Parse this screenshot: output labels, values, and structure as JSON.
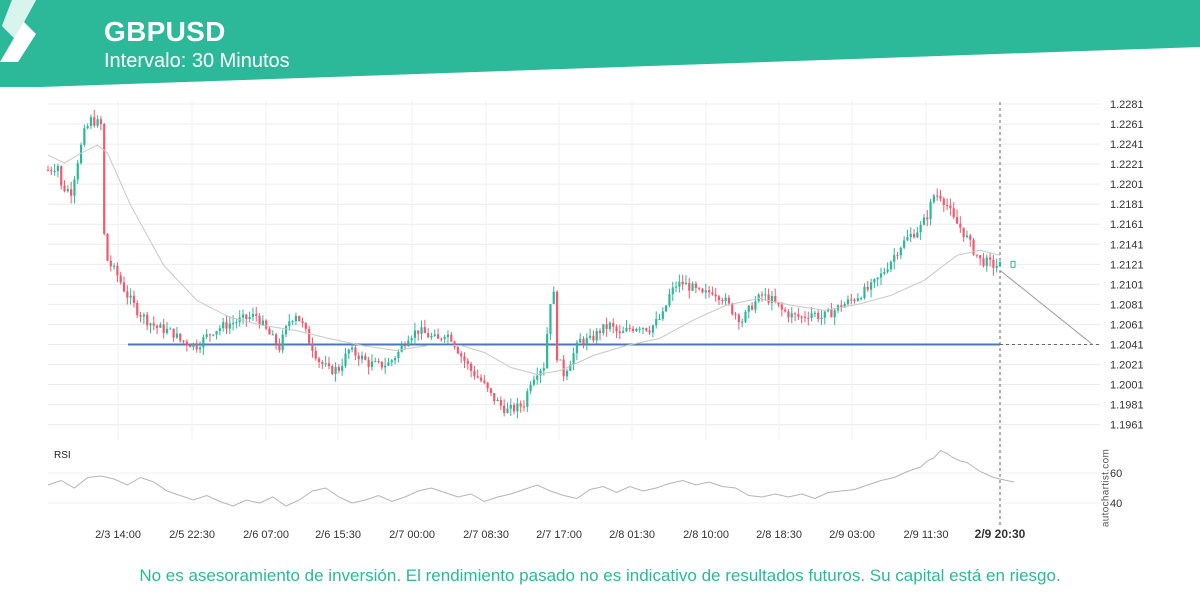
{
  "header": {
    "symbol": "GBPUSD",
    "interval": "Intervalo: 30 Minutos",
    "accent_color": "#2bb99a"
  },
  "footer": {
    "disclaimer": "No es asesoramiento de inversión. El rendimiento pasado no es indicativo de resultados futuros. Su capital está en riesgo."
  },
  "watermark": "autochartist.com",
  "chart_data": [
    {
      "type": "candlestick",
      "title": "GBPUSD",
      "subtitle": "Intervalo: 30 Minutos",
      "y_ticks": [
        "1.2281",
        "1.2261",
        "1.2241",
        "1.2221",
        "1.2201",
        "1.2181",
        "1.2161",
        "1.2141",
        "1.2121",
        "1.2101",
        "1.2081",
        "1.2061",
        "1.2041",
        "1.2021",
        "1.2001",
        "1.1981",
        "1.1961"
      ],
      "ylim": [
        1.195,
        1.2285
      ],
      "x_ticks": [
        "2/3 14:00",
        "2/5 22:30",
        "2/6 07:00",
        "2/6 15:30",
        "2/7 00:00",
        "2/7 08:30",
        "2/7 17:00",
        "2/8 01:30",
        "2/8 10:00",
        "2/8 18:30",
        "2/9 03:00",
        "2/9 11:30",
        "2/9 20:30"
      ],
      "highlighted_x_tick": "2/9 20:30",
      "support_level": 1.2041,
      "support_color": "#4a78b8",
      "bull_color": "#2bb99a",
      "bear_color": "#f05a6e",
      "price_path": [
        [
          0,
          1.2215
        ],
        [
          3,
          1.222
        ],
        [
          4,
          1.2198
        ],
        [
          7,
          1.2194
        ],
        [
          9,
          1.2225
        ],
        [
          11,
          1.2252
        ],
        [
          13,
          1.2265
        ],
        [
          15,
          1.2262
        ],
        [
          16,
          1.226
        ],
        [
          17,
          1.215
        ],
        [
          18,
          1.2125
        ],
        [
          21,
          1.211
        ],
        [
          24,
          1.209
        ],
        [
          27,
          1.2075
        ],
        [
          30,
          1.2065
        ],
        [
          33,
          1.2058
        ],
        [
          36,
          1.2055
        ],
        [
          38,
          1.2052
        ],
        [
          40,
          1.2045
        ],
        [
          45,
          1.204
        ],
        [
          50,
          1.2055
        ],
        [
          55,
          1.2062
        ],
        [
          60,
          1.2067
        ],
        [
          63,
          1.207
        ],
        [
          66,
          1.2055
        ],
        [
          70,
          1.2038
        ],
        [
          73,
          1.2065
        ],
        [
          75,
          1.2072
        ],
        [
          77,
          1.206
        ],
        [
          79,
          1.2045
        ],
        [
          82,
          1.2025
        ],
        [
          85,
          1.2015
        ],
        [
          88,
          1.2017
        ],
        [
          91,
          1.2035
        ],
        [
          94,
          1.203
        ],
        [
          97,
          1.2022
        ],
        [
          100,
          1.202
        ],
        [
          103,
          1.2022
        ],
        [
          106,
          1.2033
        ],
        [
          109,
          1.205
        ],
        [
          112,
          1.2055
        ],
        [
          115,
          1.205
        ],
        [
          118,
          1.2045
        ],
        [
          120,
          1.2053
        ],
        [
          122,
          1.2048
        ],
        [
          125,
          1.203
        ],
        [
          128,
          1.2015
        ],
        [
          131,
          1.2005
        ],
        [
          134,
          1.199
        ],
        [
          137,
          1.198
        ],
        [
          139,
          1.1975
        ],
        [
          142,
          1.1978
        ],
        [
          144,
          1.1982
        ],
        [
          146,
          1.2005
        ],
        [
          148,
          1.2015
        ],
        [
          150,
          1.202
        ],
        [
          152,
          1.2085
        ],
        [
          153,
          1.209
        ],
        [
          154,
          1.203
        ],
        [
          156,
          1.2012
        ],
        [
          158,
          1.2025
        ],
        [
          161,
          1.2045
        ],
        [
          164,
          1.2045
        ],
        [
          167,
          1.2055
        ],
        [
          170,
          1.206
        ],
        [
          173,
          1.205
        ],
        [
          176,
          1.2057
        ],
        [
          179,
          1.206
        ],
        [
          182,
          1.2057
        ],
        [
          184,
          1.2063
        ],
        [
          186,
          1.207
        ],
        [
          188,
          1.209
        ],
        [
          190,
          1.21
        ],
        [
          192,
          1.2102
        ],
        [
          195,
          1.2097
        ],
        [
          198,
          1.209
        ],
        [
          201,
          1.2095
        ],
        [
          204,
          1.2088
        ],
        [
          207,
          1.2075
        ],
        [
          210,
          1.2065
        ],
        [
          213,
          1.208
        ],
        [
          216,
          1.209
        ],
        [
          219,
          1.2085
        ],
        [
          222,
          1.2075
        ],
        [
          225,
          1.207
        ],
        [
          228,
          1.2068
        ],
        [
          231,
          1.2073
        ],
        [
          234,
          1.2068
        ],
        [
          237,
          1.2073
        ],
        [
          240,
          1.208
        ],
        [
          243,
          1.2085
        ],
        [
          246,
          1.2092
        ],
        [
          249,
          1.2098
        ],
        [
          252,
          1.211
        ],
        [
          255,
          1.2125
        ],
        [
          258,
          1.214
        ],
        [
          261,
          1.215
        ],
        [
          264,
          1.2158
        ],
        [
          266,
          1.217
        ],
        [
          268,
          1.219
        ],
        [
          270,
          1.219
        ],
        [
          272,
          1.218
        ],
        [
          274,
          1.2165
        ],
        [
          276,
          1.2158
        ],
        [
          278,
          1.2147
        ],
        [
          280,
          1.2135
        ],
        [
          282,
          1.2125
        ],
        [
          284,
          1.2123
        ],
        [
          286,
          1.212
        ],
        [
          288,
          1.212
        ]
      ],
      "ma_path": [
        [
          0,
          1.223
        ],
        [
          5,
          1.2222
        ],
        [
          10,
          1.2232
        ],
        [
          15,
          1.224
        ],
        [
          18,
          1.2232
        ],
        [
          25,
          1.218
        ],
        [
          35,
          1.212
        ],
        [
          45,
          1.2085
        ],
        [
          55,
          1.2068
        ],
        [
          65,
          1.206
        ],
        [
          75,
          1.2055
        ],
        [
          85,
          1.2047
        ],
        [
          95,
          1.204
        ],
        [
          105,
          1.2035
        ],
        [
          115,
          1.204
        ],
        [
          125,
          1.204
        ],
        [
          132,
          1.2033
        ],
        [
          140,
          1.2018
        ],
        [
          148,
          1.2011
        ],
        [
          155,
          1.2015
        ],
        [
          165,
          1.203
        ],
        [
          175,
          1.204
        ],
        [
          185,
          1.2047
        ],
        [
          195,
          1.2065
        ],
        [
          205,
          1.208
        ],
        [
          215,
          1.2087
        ],
        [
          225,
          1.208
        ],
        [
          235,
          1.2075
        ],
        [
          245,
          1.2081
        ],
        [
          255,
          1.209
        ],
        [
          265,
          1.2105
        ],
        [
          275,
          1.213
        ],
        [
          282,
          1.2135
        ],
        [
          288,
          1.213
        ]
      ],
      "projection": [
        [
          288,
          1.2115
        ],
        [
          316,
          1.2041
        ]
      ],
      "rsi": {
        "label": "RSI",
        "ticks": [
          "60",
          "40"
        ],
        "ylim": [
          30,
          85
        ],
        "path": [
          [
            0,
            52
          ],
          [
            4,
            55
          ],
          [
            8,
            50
          ],
          [
            12,
            57
          ],
          [
            16,
            58
          ],
          [
            20,
            56
          ],
          [
            24,
            52
          ],
          [
            28,
            57
          ],
          [
            32,
            54
          ],
          [
            36,
            48
          ],
          [
            40,
            45
          ],
          [
            44,
            42
          ],
          [
            48,
            45
          ],
          [
            52,
            41
          ],
          [
            56,
            38
          ],
          [
            60,
            42
          ],
          [
            64,
            40
          ],
          [
            68,
            44
          ],
          [
            72,
            38
          ],
          [
            76,
            42
          ],
          [
            80,
            48
          ],
          [
            84,
            50
          ],
          [
            88,
            44
          ],
          [
            92,
            40
          ],
          [
            96,
            42
          ],
          [
            100,
            45
          ],
          [
            104,
            41
          ],
          [
            108,
            44
          ],
          [
            112,
            48
          ],
          [
            116,
            50
          ],
          [
            120,
            47
          ],
          [
            124,
            44
          ],
          [
            128,
            46
          ],
          [
            132,
            41
          ],
          [
            136,
            44
          ],
          [
            140,
            46
          ],
          [
            144,
            49
          ],
          [
            148,
            52
          ],
          [
            152,
            48
          ],
          [
            156,
            45
          ],
          [
            160,
            43
          ],
          [
            164,
            49
          ],
          [
            168,
            51
          ],
          [
            172,
            47
          ],
          [
            176,
            51
          ],
          [
            180,
            48
          ],
          [
            184,
            50
          ],
          [
            188,
            53
          ],
          [
            192,
            55
          ],
          [
            196,
            52
          ],
          [
            200,
            54
          ],
          [
            204,
            51
          ],
          [
            208,
            50
          ],
          [
            212,
            45
          ],
          [
            216,
            44
          ],
          [
            220,
            46
          ],
          [
            224,
            44
          ],
          [
            228,
            46
          ],
          [
            232,
            43
          ],
          [
            236,
            47
          ],
          [
            240,
            48
          ],
          [
            244,
            49
          ],
          [
            248,
            52
          ],
          [
            252,
            55
          ],
          [
            256,
            57
          ],
          [
            260,
            61
          ],
          [
            264,
            64
          ],
          [
            266,
            68
          ],
          [
            268,
            70
          ],
          [
            270,
            75
          ],
          [
            272,
            73
          ],
          [
            274,
            70
          ],
          [
            276,
            68
          ],
          [
            278,
            67
          ],
          [
            280,
            64
          ],
          [
            282,
            61
          ],
          [
            284,
            59
          ],
          [
            286,
            57
          ],
          [
            288,
            56
          ]
        ]
      }
    }
  ]
}
